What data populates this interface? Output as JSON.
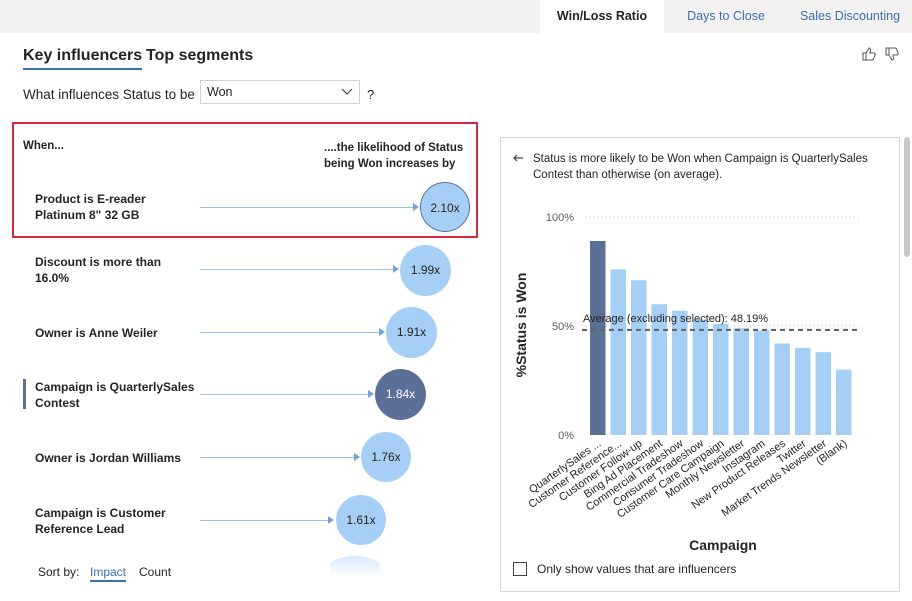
{
  "top_tabs": [
    {
      "label": "Win/Loss Ratio",
      "active": true
    },
    {
      "label": "Days to Close",
      "active": false
    },
    {
      "label": "Sales Discounting",
      "active": false
    }
  ],
  "tabs": [
    {
      "label": "Key influencers",
      "active": true
    },
    {
      "label": "Top segments",
      "active": false
    }
  ],
  "question": {
    "prefix": "What influences Status to be",
    "selected": "Won",
    "suffix": "?"
  },
  "columns": {
    "when": "When...",
    "likelihood": "....the likelihood of Status being Won increases by"
  },
  "influencers": [
    {
      "label": "Product is E-reader Platinum 8\" 32 GB",
      "value": "2.10x",
      "selected": false,
      "highlighted": true
    },
    {
      "label": "Discount is more than 16.0%",
      "value": "1.99x",
      "selected": false
    },
    {
      "label": "Owner is Anne Weiler",
      "value": "1.91x",
      "selected": false
    },
    {
      "label": "Campaign is QuarterlySales Contest",
      "value": "1.84x",
      "selected": true
    },
    {
      "label": "Owner is Jordan Williams",
      "value": "1.76x",
      "selected": false
    },
    {
      "label": "Campaign is Customer Reference Lead",
      "value": "1.61x",
      "selected": false
    }
  ],
  "sort": {
    "label": "Sort by:",
    "options": [
      "Impact",
      "Count"
    ],
    "active": "Impact"
  },
  "detail": {
    "text": "Status is more likely to be Won when Campaign is QuarterlySales Contest than otherwise (on average).",
    "checkbox_label": "Only show values that are influencers"
  },
  "colors": {
    "bar": "#a6cff5",
    "bar_selected": "#5c6f97",
    "accent": "#3a6fb0",
    "highlight_border": "#d6283e"
  },
  "chart_data": {
    "type": "bar",
    "title": "",
    "xlabel": "Campaign",
    "ylabel": "%Status is Won",
    "ylim": [
      0,
      100
    ],
    "yticks": [
      "0%",
      "50%",
      "100%"
    ],
    "categories": [
      "QuarterlySales ...",
      "Customer Reference...",
      "Customer Follow-up",
      "Bing Ad Placement",
      "Commercial Tradeshow",
      "Consumer Tradeshow",
      "Customer Care Campaign",
      "Monthly Newsletter",
      "Instagram",
      "New Product Releases",
      "Twitter",
      "Market Trends Newsletter",
      "(Blank)"
    ],
    "values": [
      89,
      76,
      71,
      60,
      57,
      53,
      51,
      49,
      48,
      42,
      40,
      38,
      30
    ],
    "selected_index": 0,
    "average": {
      "value": 48.19,
      "label": "Average (excluding selected): 48.19%"
    }
  }
}
